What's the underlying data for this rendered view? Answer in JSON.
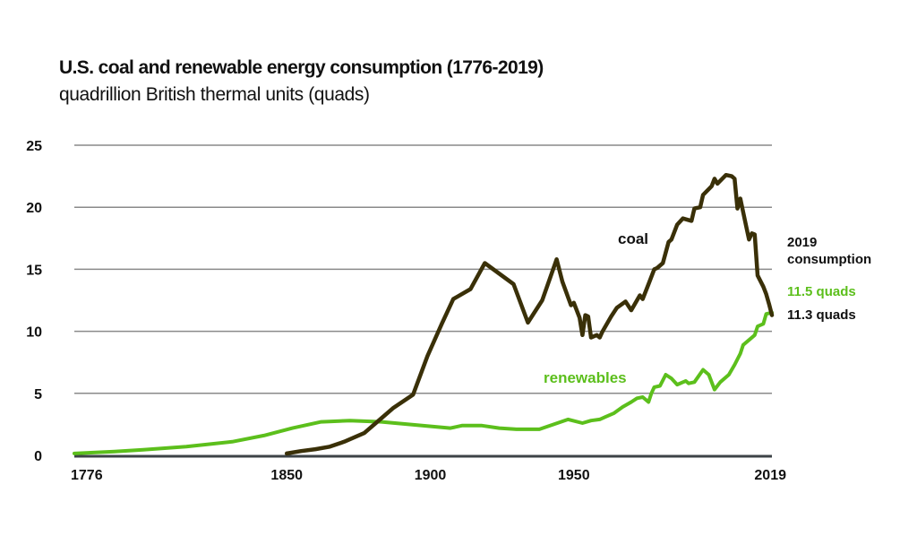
{
  "chart_data": {
    "type": "line",
    "title": "U.S. coal and renewable energy consumption (1776-2019)",
    "subtitle": "quadrillion British thermal units (quads)",
    "xlabel": "",
    "ylabel": "",
    "xlim": [
      1776,
      2019
    ],
    "ylim": [
      0,
      25
    ],
    "grid": true,
    "x_ticks": [
      1776,
      1850,
      1900,
      1950,
      2019
    ],
    "y_ticks": [
      0,
      5,
      10,
      15,
      20,
      25
    ],
    "colors": {
      "coal": "#3a3008",
      "renewables": "#5cbf1c",
      "grid": "#8a8a8a",
      "axis": "#3d4347"
    },
    "series": [
      {
        "name": "coal",
        "label": "coal",
        "points": [
          [
            1850,
            0.15
          ],
          [
            1855,
            0.35
          ],
          [
            1860,
            0.5
          ],
          [
            1865,
            0.7
          ],
          [
            1870,
            1.1
          ],
          [
            1877,
            1.8
          ],
          [
            1883,
            3.0
          ],
          [
            1887,
            3.8
          ],
          [
            1894,
            4.9
          ],
          [
            1899,
            8.0
          ],
          [
            1904,
            10.6
          ],
          [
            1908,
            12.6
          ],
          [
            1914,
            13.4
          ],
          [
            1919,
            15.5
          ],
          [
            1929,
            13.8
          ],
          [
            1934,
            10.7
          ],
          [
            1939,
            12.5
          ],
          [
            1944,
            15.8
          ],
          [
            1946,
            14.0
          ],
          [
            1949,
            12.1
          ],
          [
            1950,
            12.3
          ],
          [
            1952,
            11.1
          ],
          [
            1953,
            9.7
          ],
          [
            1954,
            11.3
          ],
          [
            1955,
            11.2
          ],
          [
            1956,
            9.5
          ],
          [
            1958,
            9.7
          ],
          [
            1959,
            9.5
          ],
          [
            1960,
            10.0
          ],
          [
            1963,
            11.2
          ],
          [
            1965,
            11.9
          ],
          [
            1968,
            12.4
          ],
          [
            1970,
            11.7
          ],
          [
            1973,
            12.9
          ],
          [
            1974,
            12.6
          ],
          [
            1976,
            13.8
          ],
          [
            1978,
            15.0
          ],
          [
            1979,
            15.1
          ],
          [
            1981,
            15.5
          ],
          [
            1983,
            17.2
          ],
          [
            1984,
            17.4
          ],
          [
            1986,
            18.6
          ],
          [
            1988,
            19.1
          ],
          [
            1991,
            18.9
          ],
          [
            1992,
            19.9
          ],
          [
            1994,
            20.0
          ],
          [
            1995,
            21.0
          ],
          [
            1998,
            21.7
          ],
          [
            1999,
            22.3
          ],
          [
            2000,
            21.9
          ],
          [
            2003,
            22.6
          ],
          [
            2005,
            22.5
          ],
          [
            2006,
            22.3
          ],
          [
            2007,
            19.9
          ],
          [
            2008,
            20.7
          ],
          [
            2009,
            19.6
          ],
          [
            2011,
            17.4
          ],
          [
            2012,
            17.9
          ],
          [
            2013,
            17.8
          ],
          [
            2014,
            14.5
          ],
          [
            2016,
            13.6
          ],
          [
            2017,
            13.0
          ],
          [
            2018,
            12.2
          ],
          [
            2019,
            11.3
          ]
        ]
      },
      {
        "name": "renewables",
        "label": "renewables",
        "points": [
          [
            1776,
            0.15
          ],
          [
            1790,
            0.3
          ],
          [
            1800,
            0.45
          ],
          [
            1815,
            0.7
          ],
          [
            1831,
            1.1
          ],
          [
            1842,
            1.6
          ],
          [
            1852,
            2.2
          ],
          [
            1862,
            2.7
          ],
          [
            1872,
            2.8
          ],
          [
            1883,
            2.7
          ],
          [
            1895,
            2.45
          ],
          [
            1907,
            2.2
          ],
          [
            1911,
            2.4
          ],
          [
            1918,
            2.4
          ],
          [
            1924,
            2.2
          ],
          [
            1930,
            2.1
          ],
          [
            1938,
            2.1
          ],
          [
            1943,
            2.5
          ],
          [
            1948,
            2.9
          ],
          [
            1953,
            2.6
          ],
          [
            1956,
            2.8
          ],
          [
            1959,
            2.9
          ],
          [
            1961,
            3.1
          ],
          [
            1964,
            3.4
          ],
          [
            1967,
            3.9
          ],
          [
            1970,
            4.3
          ],
          [
            1972,
            4.6
          ],
          [
            1974,
            4.7
          ],
          [
            1976,
            4.3
          ],
          [
            1977,
            5.0
          ],
          [
            1978,
            5.5
          ],
          [
            1980,
            5.6
          ],
          [
            1982,
            6.5
          ],
          [
            1984,
            6.2
          ],
          [
            1986,
            5.7
          ],
          [
            1989,
            6.0
          ],
          [
            1990,
            5.8
          ],
          [
            1992,
            5.9
          ],
          [
            1995,
            6.9
          ],
          [
            1997,
            6.5
          ],
          [
            1999,
            5.3
          ],
          [
            2001,
            5.9
          ],
          [
            2004,
            6.5
          ],
          [
            2006,
            7.3
          ],
          [
            2008,
            8.2
          ],
          [
            2009,
            8.9
          ],
          [
            2011,
            9.3
          ],
          [
            2013,
            9.7
          ],
          [
            2014,
            10.4
          ],
          [
            2016,
            10.6
          ],
          [
            2017,
            11.4
          ],
          [
            2019,
            11.5
          ]
        ]
      }
    ],
    "annotations": {
      "header_line1": "2019",
      "header_line2": "consumption",
      "renewables_value": "11.5 quads",
      "coal_value": "11.3 quads"
    }
  }
}
